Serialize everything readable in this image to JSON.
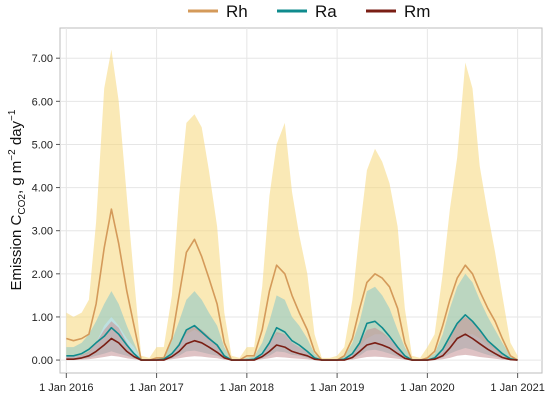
{
  "chart_data": {
    "type": "line",
    "title": "",
    "xlabel": "",
    "ylabel": {
      "main": "Emission C",
      "sub": "CO2",
      "mid": ", g m",
      "sup1": "−2",
      "mid2": " day",
      "sup2": "−1"
    },
    "ylim": [
      -0.3,
      7.7
    ],
    "xlim": [
      2015.93,
      2021.27
    ],
    "yticks": [
      0,
      1,
      2,
      3,
      4,
      5,
      6,
      7
    ],
    "ytick_labels": [
      "0.00",
      "1.00",
      "2.00",
      "3.00",
      "4.00",
      "5.00",
      "6.00",
      "7.00"
    ],
    "xticks": [
      2016,
      2017,
      2018,
      2019,
      2020,
      2021
    ],
    "xtick_labels": [
      "1 Jan 2016",
      "1 Jan 2017",
      "1 Jan 2018",
      "1 Jan 2019",
      "1 Jan 2020",
      "1 Jan 2021"
    ],
    "grid": true,
    "legend_position": "top",
    "x": [
      2016.0,
      2016.08,
      2016.17,
      2016.25,
      2016.33,
      2016.42,
      2016.5,
      2016.58,
      2016.67,
      2016.75,
      2016.83,
      2016.92,
      2017.0,
      2017.08,
      2017.17,
      2017.25,
      2017.33,
      2017.42,
      2017.5,
      2017.58,
      2017.67,
      2017.75,
      2017.83,
      2017.92,
      2018.0,
      2018.08,
      2018.17,
      2018.25,
      2018.33,
      2018.42,
      2018.5,
      2018.58,
      2018.67,
      2018.75,
      2018.83,
      2018.92,
      2019.0,
      2019.08,
      2019.17,
      2019.25,
      2019.33,
      2019.42,
      2019.5,
      2019.58,
      2019.67,
      2019.75,
      2019.83,
      2019.92,
      2020.0,
      2020.08,
      2020.17,
      2020.25,
      2020.33,
      2020.42,
      2020.5,
      2020.58,
      2020.67,
      2020.75,
      2020.83,
      2020.92,
      2021.0
    ],
    "series": [
      {
        "name": "Rh",
        "color": "#d49a5a",
        "band_color": "#f6d77a",
        "values": [
          0.5,
          0.45,
          0.5,
          0.6,
          1.3,
          2.6,
          3.5,
          2.7,
          1.6,
          0.8,
          0.0,
          0.0,
          0.05,
          0.05,
          0.5,
          1.5,
          2.5,
          2.8,
          2.4,
          1.9,
          1.3,
          0.4,
          0.0,
          0.0,
          0.1,
          0.1,
          0.7,
          1.6,
          2.2,
          2.0,
          1.5,
          1.1,
          0.7,
          0.2,
          0.0,
          0.0,
          0.0,
          0.1,
          0.5,
          1.2,
          1.8,
          2.0,
          1.9,
          1.7,
          1.2,
          0.4,
          0.0,
          0.0,
          0.05,
          0.2,
          0.8,
          1.4,
          1.9,
          2.2,
          2.0,
          1.6,
          1.2,
          0.9,
          0.5,
          0.1,
          0.0
        ],
        "lower": [
          0.1,
          0.1,
          0.1,
          0.15,
          0.4,
          0.8,
          1.0,
          0.8,
          0.5,
          0.3,
          0.0,
          0.0,
          0.0,
          0.0,
          0.1,
          0.4,
          0.6,
          0.7,
          0.6,
          0.5,
          0.3,
          0.1,
          0.0,
          0.0,
          0.0,
          0.0,
          0.2,
          0.4,
          0.6,
          0.6,
          0.4,
          0.3,
          0.2,
          0.05,
          0.0,
          0.0,
          0.0,
          0.0,
          0.15,
          0.3,
          0.5,
          0.6,
          0.6,
          0.5,
          0.3,
          0.1,
          0.0,
          0.0,
          0.0,
          0.05,
          0.2,
          0.4,
          0.5,
          0.6,
          0.6,
          0.5,
          0.35,
          0.25,
          0.1,
          0.0,
          0.0
        ],
        "upper": [
          1.1,
          1.0,
          1.1,
          1.4,
          3.2,
          6.3,
          7.2,
          6.0,
          3.8,
          1.9,
          0.1,
          0.05,
          0.3,
          0.3,
          1.5,
          3.8,
          5.5,
          5.7,
          5.4,
          4.4,
          3.1,
          1.1,
          0.1,
          0.05,
          0.3,
          0.3,
          1.7,
          3.8,
          5.0,
          5.5,
          3.9,
          2.9,
          2.0,
          0.6,
          0.05,
          0.05,
          0.1,
          0.3,
          1.4,
          3.0,
          4.4,
          4.9,
          4.6,
          4.1,
          3.1,
          1.2,
          0.1,
          0.05,
          0.3,
          0.6,
          2.0,
          3.5,
          4.7,
          6.9,
          6.3,
          4.5,
          3.4,
          2.5,
          1.5,
          0.4,
          0.1
        ]
      },
      {
        "name": "Ra",
        "color": "#0f8b8d",
        "band_color": "#86c7c9",
        "values": [
          0.1,
          0.1,
          0.15,
          0.25,
          0.4,
          0.55,
          0.75,
          0.6,
          0.35,
          0.15,
          0.0,
          0.0,
          0.0,
          0.02,
          0.15,
          0.35,
          0.7,
          0.8,
          0.65,
          0.5,
          0.35,
          0.1,
          0.0,
          0.0,
          0.0,
          0.02,
          0.15,
          0.4,
          0.75,
          0.65,
          0.45,
          0.35,
          0.2,
          0.05,
          0.0,
          0.0,
          0.0,
          0.02,
          0.15,
          0.4,
          0.85,
          0.9,
          0.75,
          0.55,
          0.3,
          0.1,
          0.0,
          0.0,
          0.0,
          0.05,
          0.25,
          0.55,
          0.85,
          1.05,
          0.9,
          0.7,
          0.45,
          0.3,
          0.15,
          0.03,
          0.0
        ],
        "lower": [
          0.02,
          0.02,
          0.03,
          0.05,
          0.1,
          0.15,
          0.2,
          0.15,
          0.1,
          0.04,
          0.0,
          0.0,
          0.0,
          0.0,
          0.04,
          0.1,
          0.2,
          0.22,
          0.18,
          0.14,
          0.1,
          0.03,
          0.0,
          0.0,
          0.0,
          0.0,
          0.04,
          0.1,
          0.2,
          0.18,
          0.12,
          0.1,
          0.05,
          0.01,
          0.0,
          0.0,
          0.0,
          0.0,
          0.04,
          0.1,
          0.22,
          0.24,
          0.2,
          0.15,
          0.08,
          0.03,
          0.0,
          0.0,
          0.0,
          0.01,
          0.06,
          0.15,
          0.22,
          0.28,
          0.24,
          0.18,
          0.12,
          0.08,
          0.04,
          0.01,
          0.0
        ],
        "upper": [
          0.3,
          0.3,
          0.4,
          0.6,
          0.9,
          1.3,
          1.6,
          1.3,
          0.8,
          0.4,
          0.02,
          0.01,
          0.05,
          0.08,
          0.45,
          0.9,
          1.4,
          1.6,
          1.4,
          1.1,
          0.8,
          0.3,
          0.02,
          0.01,
          0.05,
          0.08,
          0.4,
          0.9,
          1.5,
          1.4,
          1.0,
          0.8,
          0.5,
          0.15,
          0.01,
          0.01,
          0.02,
          0.08,
          0.4,
          0.9,
          1.6,
          1.7,
          1.5,
          1.2,
          0.7,
          0.3,
          0.02,
          0.01,
          0.05,
          0.15,
          0.6,
          1.2,
          1.7,
          2.0,
          1.8,
          1.4,
          1.0,
          0.7,
          0.4,
          0.1,
          0.02
        ]
      },
      {
        "name": "Rm",
        "color": "#7a1e14",
        "band_color": "#c48f94",
        "values": [
          0.02,
          0.02,
          0.05,
          0.1,
          0.2,
          0.35,
          0.5,
          0.4,
          0.2,
          0.08,
          0.0,
          0.0,
          0.0,
          0.0,
          0.08,
          0.2,
          0.38,
          0.45,
          0.4,
          0.3,
          0.18,
          0.05,
          0.0,
          0.0,
          0.0,
          0.0,
          0.08,
          0.2,
          0.35,
          0.3,
          0.2,
          0.15,
          0.1,
          0.02,
          0.0,
          0.0,
          0.0,
          0.0,
          0.06,
          0.2,
          0.35,
          0.4,
          0.35,
          0.28,
          0.15,
          0.04,
          0.0,
          0.0,
          0.0,
          0.02,
          0.1,
          0.28,
          0.5,
          0.6,
          0.5,
          0.38,
          0.25,
          0.15,
          0.06,
          0.01,
          0.0
        ],
        "lower": [
          0.0,
          0.0,
          0.01,
          0.02,
          0.04,
          0.07,
          0.1,
          0.08,
          0.04,
          0.02,
          0.0,
          0.0,
          0.0,
          0.0,
          0.02,
          0.04,
          0.07,
          0.09,
          0.08,
          0.06,
          0.04,
          0.01,
          0.0,
          0.0,
          0.0,
          0.0,
          0.02,
          0.04,
          0.07,
          0.06,
          0.04,
          0.03,
          0.02,
          0.0,
          0.0,
          0.0,
          0.0,
          0.0,
          0.01,
          0.04,
          0.07,
          0.08,
          0.07,
          0.05,
          0.03,
          0.01,
          0.0,
          0.0,
          0.0,
          0.0,
          0.02,
          0.05,
          0.1,
          0.12,
          0.1,
          0.07,
          0.05,
          0.03,
          0.01,
          0.0,
          0.0
        ],
        "upper": [
          0.08,
          0.08,
          0.12,
          0.2,
          0.4,
          0.7,
          0.9,
          0.75,
          0.4,
          0.15,
          0.01,
          0.0,
          0.02,
          0.02,
          0.15,
          0.4,
          0.7,
          0.8,
          0.7,
          0.55,
          0.35,
          0.1,
          0.01,
          0.0,
          0.02,
          0.02,
          0.15,
          0.4,
          0.65,
          0.6,
          0.4,
          0.3,
          0.2,
          0.05,
          0.0,
          0.0,
          0.01,
          0.02,
          0.12,
          0.4,
          0.7,
          0.75,
          0.65,
          0.5,
          0.3,
          0.08,
          0.01,
          0.0,
          0.02,
          0.05,
          0.2,
          0.5,
          0.85,
          1.0,
          0.9,
          0.7,
          0.45,
          0.28,
          0.12,
          0.03,
          0.0
        ]
      }
    ]
  }
}
